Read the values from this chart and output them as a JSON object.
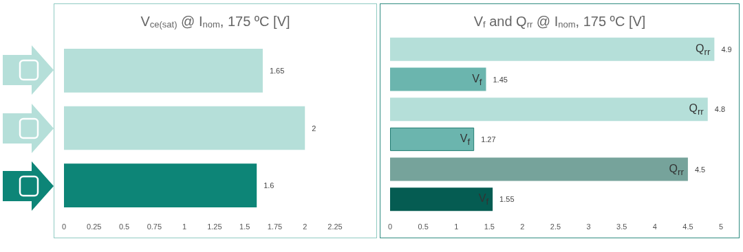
{
  "chart_data": [
    {
      "type": "bar",
      "orientation": "horizontal",
      "title": "V$_{ce(sat)}$ @ I$_{nom}$, 175 ºC [V]",
      "categories": [
        null,
        null,
        null
      ],
      "values": [
        1.65,
        2,
        1.6
      ],
      "colors": [
        "#b5dfd9",
        "#b5dfd9",
        "#0d8577"
      ],
      "xlim": [
        0,
        2.25
      ],
      "xticks": [
        0,
        0.25,
        0.5,
        0.75,
        1,
        1.25,
        1.5,
        1.75,
        2,
        2.25
      ],
      "data_labels": true,
      "grid": false
    },
    {
      "type": "bar",
      "orientation": "horizontal",
      "title": "V$_{f}$ and Q$_{rr}$ @ I$_{nom}$, 175 ºC [V]",
      "categories": [
        null,
        null,
        null,
        null,
        null,
        null
      ],
      "values": [
        4.9,
        1.45,
        4.8,
        1.27,
        4.5,
        1.55
      ],
      "colors": [
        "#b5dfd9",
        "#6bb5ae",
        "#b5dfd9",
        "#6bb5ae",
        "#76a39b",
        "#055c52"
      ],
      "xlim": [
        0,
        5
      ],
      "xticks": [
        0,
        0.5,
        1,
        1.5,
        2,
        2.5,
        3,
        3.5,
        4,
        4.5,
        5
      ],
      "data_labels": true,
      "grid": false,
      "annotations": [
        {
          "text": "Q$_{rr}$",
          "x": 4.9
        },
        {
          "text": "V$_{f}$",
          "x": 1.45
        },
        {
          "text": "Q$_{rr}$",
          "x": 4.8
        },
        {
          "text": "V$_{f}$",
          "x": 1.27
        },
        {
          "text": "Q$_{rr}$",
          "x": 4.5
        },
        {
          "text": "V$_{f}$",
          "x": 1.55
        }
      ]
    }
  ]
}
